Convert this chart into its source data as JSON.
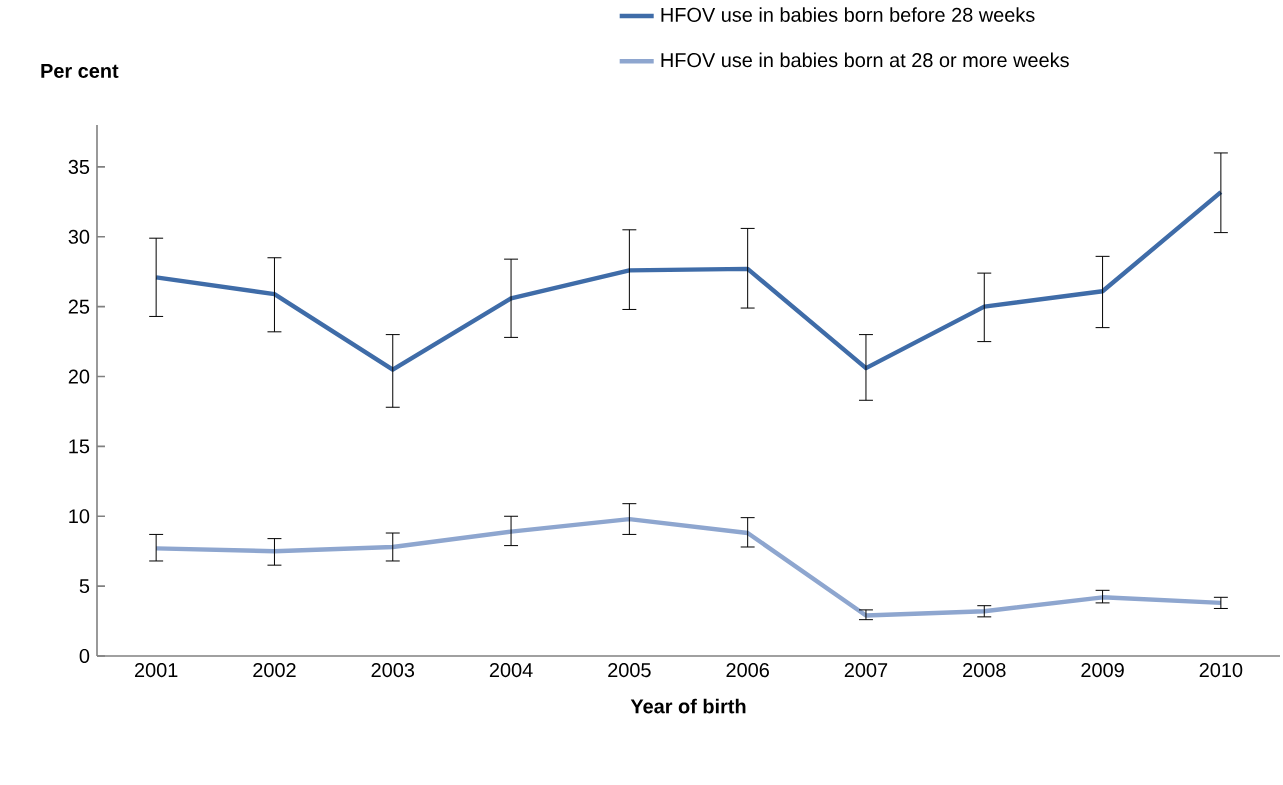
{
  "chart_data": {
    "type": "line",
    "ylabel": "Per cent",
    "xlabel": "Year of birth",
    "categories": [
      "2001",
      "2002",
      "2003",
      "2004",
      "2005",
      "2006",
      "2007",
      "2008",
      "2009",
      "2010"
    ],
    "ylim": [
      0,
      38
    ],
    "yticks": [
      0,
      5,
      10,
      15,
      20,
      25,
      30,
      35
    ],
    "legend": "top right",
    "marker": "none",
    "line_style": "solid",
    "grid": false,
    "series": [
      {
        "name": "HFOV use in babies born before 28 weeks",
        "color": "#3f6ca8",
        "values": [
          27.1,
          25.9,
          20.5,
          25.6,
          27.6,
          27.7,
          20.6,
          25.0,
          26.1,
          33.2
        ],
        "errors": [
          [
            24.3,
            29.9
          ],
          [
            23.2,
            28.5
          ],
          [
            17.8,
            23.0
          ],
          [
            22.8,
            28.4
          ],
          [
            24.8,
            30.5
          ],
          [
            24.9,
            30.6
          ],
          [
            18.3,
            23.0
          ],
          [
            22.5,
            27.4
          ],
          [
            23.5,
            28.6
          ],
          [
            30.3,
            36.0
          ]
        ]
      },
      {
        "name": "HFOV use in babies born at 28 or more weeks",
        "color": "#8ea6cf",
        "values": [
          7.7,
          7.5,
          7.8,
          8.9,
          9.8,
          8.8,
          2.9,
          3.2,
          4.2,
          3.8
        ],
        "errors": [
          [
            6.8,
            8.7
          ],
          [
            6.5,
            8.4
          ],
          [
            6.8,
            8.8
          ],
          [
            7.9,
            10.0
          ],
          [
            8.7,
            10.9
          ],
          [
            7.8,
            9.9
          ],
          [
            2.6,
            3.3
          ],
          [
            2.8,
            3.6
          ],
          [
            3.8,
            4.7
          ],
          [
            3.4,
            4.2
          ]
        ]
      }
    ]
  }
}
